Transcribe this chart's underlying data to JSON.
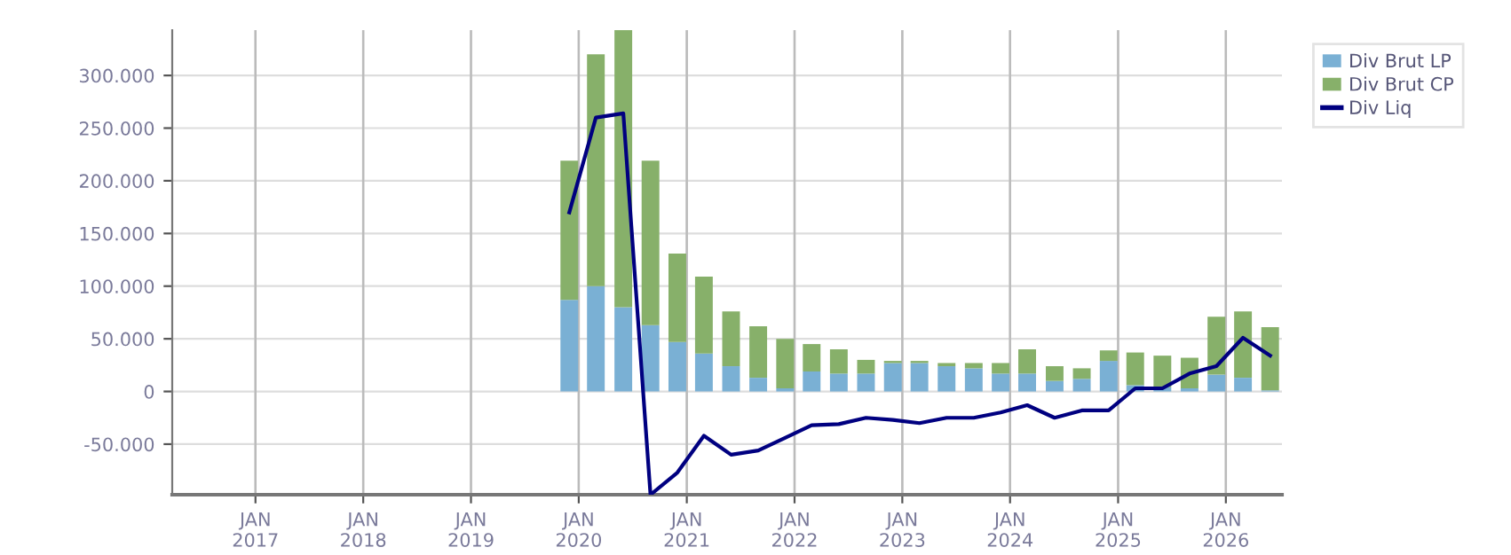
{
  "chart_data": {
    "type": "bar",
    "stacked": true,
    "x": [
      "2019-11-30",
      "2020-02-28",
      "2020-05-31",
      "2020-08-31",
      "2020-11-30",
      "2021-02-28",
      "2021-05-31",
      "2021-08-31",
      "2021-11-30",
      "2022-02-28",
      "2022-05-31",
      "2022-08-31",
      "2022-11-30",
      "2023-02-28",
      "2023-05-31",
      "2023-08-31",
      "2023-11-30",
      "2024-02-28",
      "2024-05-31",
      "2024-08-31",
      "2024-11-30",
      "2025-02-28",
      "2025-05-31",
      "2025-08-31",
      "2025-11-30",
      "2026-02-28",
      "2026-05-31"
    ],
    "series": [
      {
        "name": "Div Brut LP",
        "color": "#7ab0d4",
        "values": [
          87000,
          100000,
          80000,
          63000,
          47000,
          36000,
          24000,
          13000,
          3000,
          19000,
          17000,
          17000,
          27000,
          27000,
          24000,
          22000,
          17000,
          17000,
          10000,
          12000,
          29000,
          6000,
          4000,
          3000,
          16000,
          13000,
          1000
        ]
      },
      {
        "name": "Div Brut CP",
        "color": "#87b06a",
        "values": [
          132000,
          220000,
          263000,
          156000,
          84000,
          73000,
          52000,
          49000,
          47000,
          26000,
          23000,
          13000,
          2000,
          2000,
          3000,
          5000,
          10000,
          23000,
          14000,
          10000,
          10000,
          31000,
          30000,
          29000,
          55000,
          63000,
          60000
        ]
      },
      {
        "name": "Div Liq",
        "type": "line",
        "color": "#000080",
        "values": [
          170000,
          260000,
          264000,
          -98000,
          -77000,
          -42000,
          -60000,
          -56000,
          -44000,
          -32000,
          -31000,
          -25000,
          -27000,
          -30000,
          -25000,
          -25000,
          -20000,
          -13000,
          -25000,
          -18000,
          -18000,
          3000,
          3000,
          17000,
          24000,
          51000,
          34000
        ]
      }
    ],
    "xlim": [
      "2016-03-25",
      "2026-07-10"
    ],
    "xticks": [
      {
        "value": "2017-01-01",
        "label": "JAN\n2017"
      },
      {
        "value": "2018-01-01",
        "label": "JAN\n2018"
      },
      {
        "value": "2019-01-01",
        "label": "JAN\n2019"
      },
      {
        "value": "2020-01-01",
        "label": "JAN\n2020"
      },
      {
        "value": "2021-01-01",
        "label": "JAN\n2021"
      },
      {
        "value": "2022-01-01",
        "label": "JAN\n2022"
      },
      {
        "value": "2023-01-01",
        "label": "JAN\n2023"
      },
      {
        "value": "2024-01-01",
        "label": "JAN\n2024"
      },
      {
        "value": "2025-01-01",
        "label": "JAN\n2025"
      },
      {
        "value": "2026-01-01",
        "label": "JAN\n2026"
      }
    ],
    "ylim": [
      -98000,
      343000
    ],
    "yticks": [
      {
        "value": -50000,
        "label": "-50.000"
      },
      {
        "value": 0,
        "label": "0"
      },
      {
        "value": 50000,
        "label": "50.000"
      },
      {
        "value": 100000,
        "label": "100.000"
      },
      {
        "value": 150000,
        "label": "150.000"
      },
      {
        "value": 200000,
        "label": "200.000"
      },
      {
        "value": 250000,
        "label": "250.000"
      },
      {
        "value": 300000,
        "label": "300.000"
      }
    ],
    "grid": true,
    "legend": "top right"
  }
}
